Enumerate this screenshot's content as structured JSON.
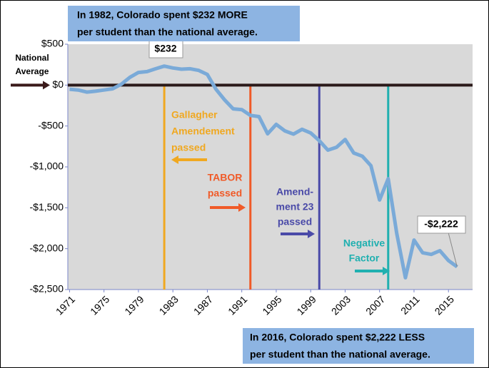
{
  "chart_data": {
    "type": "line",
    "x": [
      1971,
      1972,
      1973,
      1974,
      1975,
      1976,
      1977,
      1978,
      1979,
      1980,
      1981,
      1982,
      1983,
      1984,
      1985,
      1986,
      1987,
      1988,
      1989,
      1990,
      1991,
      1992,
      1993,
      1994,
      1995,
      1996,
      1997,
      1998,
      1999,
      2000,
      2001,
      2002,
      2003,
      2004,
      2005,
      2006,
      2007,
      2008,
      2009,
      2010,
      2011,
      2012,
      2013,
      2014,
      2015,
      2016
    ],
    "values": [
      -50,
      -60,
      -85,
      -75,
      -60,
      -45,
      10,
      95,
      155,
      165,
      200,
      232,
      210,
      195,
      200,
      180,
      130,
      -50,
      -180,
      -290,
      -300,
      -370,
      -385,
      -595,
      -480,
      -560,
      -600,
      -540,
      -585,
      -680,
      -795,
      -760,
      -665,
      -830,
      -870,
      -985,
      -1405,
      -1145,
      -1815,
      -2355,
      -1895,
      -2050,
      -2070,
      -2025,
      -2145,
      -2222
    ],
    "color": "#7aaad8",
    "xlim": [
      1970.8,
      2017.8
    ],
    "xticks": [
      1971,
      1975,
      1979,
      1983,
      1987,
      1991,
      1995,
      1999,
      2003,
      2007,
      2011,
      2015
    ],
    "ylim": [
      -2500,
      500
    ],
    "yticks": [
      {
        "value": 500,
        "label": "$500"
      },
      {
        "value": 0,
        "label": "$0"
      },
      {
        "value": -500,
        "label": "-$500"
      },
      {
        "value": -1000,
        "label": "-$1,000"
      },
      {
        "value": -1500,
        "label": "-$1,500"
      },
      {
        "value": -2000,
        "label": "-$2,000"
      },
      {
        "value": -2500,
        "label": "-$2,500"
      }
    ],
    "reference_label": [
      "National",
      "Average"
    ],
    "top_note": [
      "In 1982,  Colorado spent $232  MORE",
      "per student than the national average."
    ],
    "bottom_note": [
      "In 2016,  Colorado spent $2,222  LESS",
      "per student than the national average."
    ],
    "value_labels": {
      "start": "$232",
      "end": "-$2,222"
    },
    "events": [
      {
        "x": 1982,
        "color": "#f0a820",
        "label": [
          "Gallagher",
          "Amendement",
          "passed"
        ]
      },
      {
        "x": 1992,
        "color": "#f05a28",
        "label": [
          "TABOR",
          "passed"
        ]
      },
      {
        "x": 2000,
        "color": "#4a4aa8",
        "label": [
          "Amend-",
          "ment 23",
          "passed"
        ]
      },
      {
        "x": 2008,
        "color": "#20b0b0",
        "label": [
          "Negative",
          "Factor"
        ]
      }
    ]
  }
}
